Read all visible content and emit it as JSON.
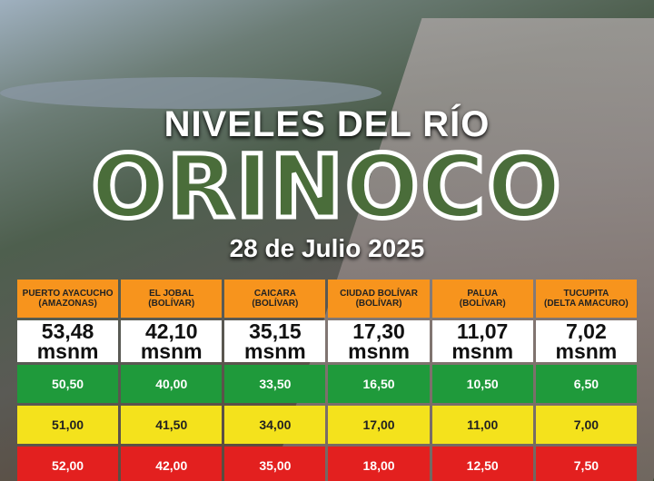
{
  "header": {
    "title": "NIVELES DEL RÍO",
    "river": "ORINOCO",
    "date": "28 de Julio 2025"
  },
  "table": {
    "columns": [
      {
        "station": "PUERTO AYACUCHO",
        "state": "(AMAZONAS)"
      },
      {
        "station": "EL JOBAL",
        "state": "(BOLÍVAR)"
      },
      {
        "station": "CAICARA",
        "state": "(BOLÍVAR)"
      },
      {
        "station": "CIUDAD BOLÍVAR",
        "state": "(BOLÍVAR)"
      },
      {
        "station": "PALUA",
        "state": "(BOLÍVAR)"
      },
      {
        "station": "TUCUPITA",
        "state": "(DELTA AMACURO)"
      }
    ],
    "levels": [
      {
        "value": "53,48",
        "unit": "msnm"
      },
      {
        "value": "42,10",
        "unit": "msnm"
      },
      {
        "value": "35,15",
        "unit": "msnm"
      },
      {
        "value": "17,30",
        "unit": "msnm"
      },
      {
        "value": "11,07",
        "unit": "msnm"
      },
      {
        "value": "7,02",
        "unit": "msnm"
      }
    ],
    "thresholds": [
      {
        "color": "#1f9a3b",
        "text": "#ffffff",
        "values": [
          "50,50",
          "40,00",
          "33,50",
          "16,50",
          "10,50",
          "6,50"
        ]
      },
      {
        "color": "#f4e21c",
        "text": "#222222",
        "values": [
          "51,00",
          "41,50",
          "34,00",
          "17,00",
          "11,00",
          "7,00"
        ]
      },
      {
        "color": "#e3201f",
        "text": "#ffffff",
        "values": [
          "52,00",
          "42,00",
          "35,00",
          "18,00",
          "12,50",
          "7,50"
        ]
      }
    ]
  }
}
